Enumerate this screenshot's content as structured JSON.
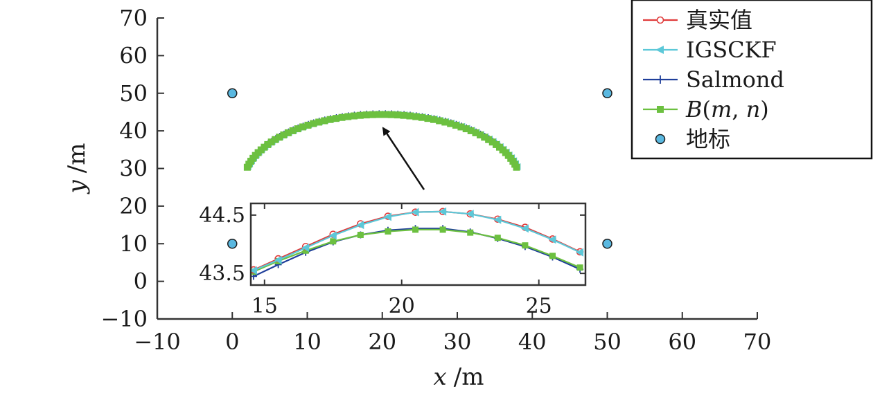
{
  "colors": {
    "truth": "#e03a3a",
    "igsckf": "#5cc8d8",
    "salmond": "#1f3f9a",
    "bmn": "#6cc040",
    "landmark_fill": "#5ab8e0",
    "axis": "#333333",
    "arrow": "#111111"
  },
  "chart_data": {
    "type": "line",
    "xlabel_var": "x",
    "xlabel_unit": "/m",
    "ylabel_var": "y",
    "ylabel_unit": "/m",
    "xlim": [
      -10,
      70
    ],
    "ylim": [
      -10,
      70
    ],
    "xticks": [
      -10,
      0,
      10,
      20,
      30,
      40,
      50,
      60,
      70
    ],
    "yticks": [
      -10,
      0,
      10,
      20,
      30,
      40,
      50,
      60,
      70
    ],
    "xtick_labels": [
      "−10",
      "0",
      "10",
      "20",
      "30",
      "40",
      "50",
      "60",
      "70"
    ],
    "ytick_labels": [
      "−10",
      "0",
      "10",
      "20",
      "30",
      "40",
      "50",
      "60",
      "70"
    ],
    "grid": false,
    "legend_position": "top-right",
    "legend": [
      {
        "label": "真实值",
        "marker": "circle",
        "color_key": "truth"
      },
      {
        "label": "IGSCKF",
        "marker": "triangle-left",
        "color_key": "igsckf"
      },
      {
        "label": "Salmond",
        "marker": "plus",
        "color_key": "salmond"
      },
      {
        "label_math": {
          "base": "B",
          "open": "(",
          "m": "m",
          "comma": ", ",
          "n": "n",
          "close": ")"
        },
        "marker": "square",
        "color_key": "bmn"
      },
      {
        "label": "地标",
        "marker": "dot",
        "color_key": "landmark_fill"
      }
    ],
    "landmarks": [
      {
        "x": 0,
        "y": 50
      },
      {
        "x": 50,
        "y": 50
      },
      {
        "x": 0,
        "y": 10
      },
      {
        "x": 50,
        "y": 10
      }
    ],
    "trajectory": {
      "description_free": true,
      "center": [
        20,
        26
      ],
      "radius": 18.5,
      "start_angle_deg": 166,
      "end_angle_deg": 14,
      "points": 60
    },
    "inset": {
      "xlim": [
        14.5,
        26.7
      ],
      "ylim": [
        43.3,
        44.7
      ],
      "xticks": [
        15,
        20,
        25
      ],
      "yticks": [
        43.5,
        44.5
      ],
      "xtick_labels": [
        "15",
        "20",
        "25"
      ],
      "ytick_labels": [
        "43.5",
        "44.5"
      ],
      "x": [
        14.6,
        15.5,
        16.5,
        17.5,
        18.5,
        19.5,
        20.5,
        21.5,
        22.5,
        23.5,
        24.5,
        25.5,
        26.5
      ],
      "series": [
        {
          "name": "真实值",
          "color_key": "truth",
          "marker": "circle",
          "values": [
            43.56,
            43.75,
            43.96,
            44.17,
            44.35,
            44.48,
            44.55,
            44.56,
            44.52,
            44.43,
            44.29,
            44.09,
            43.87
          ]
        },
        {
          "name": "IGSCKF",
          "color_key": "igsckf",
          "marker": "triangle-left",
          "values": [
            43.55,
            43.73,
            43.94,
            44.15,
            44.33,
            44.47,
            44.55,
            44.56,
            44.52,
            44.42,
            44.27,
            44.08,
            43.86
          ]
        },
        {
          "name": "Salmond",
          "color_key": "salmond",
          "marker": "plus",
          "values": [
            43.45,
            43.65,
            43.86,
            44.04,
            44.16,
            44.24,
            44.27,
            44.27,
            44.21,
            44.1,
            43.96,
            43.78,
            43.57
          ]
        },
        {
          "name": "B(m, n)",
          "color_key": "bmn",
          "marker": "square",
          "values": [
            43.53,
            43.71,
            43.89,
            44.05,
            44.16,
            44.22,
            44.25,
            44.25,
            44.2,
            44.11,
            43.98,
            43.8,
            43.6
          ]
        }
      ]
    }
  }
}
